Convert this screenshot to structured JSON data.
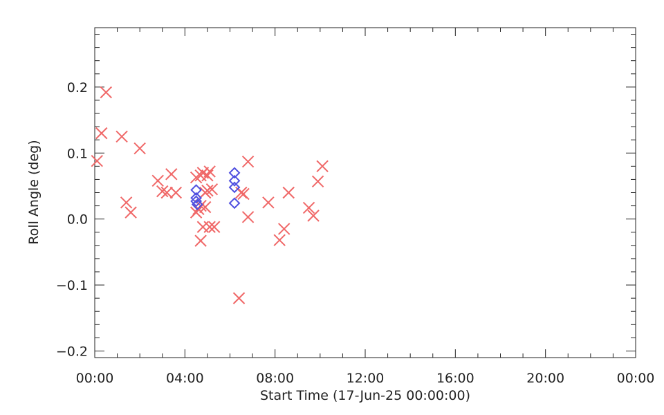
{
  "chart_data": {
    "type": "scatter",
    "title": "",
    "xlabel": "Start Time (17-Jun-25 00:00:00)",
    "ylabel": "Roll Angle (deg)",
    "x_unit": "hours",
    "xlim": [
      0,
      24
    ],
    "ylim": [
      -0.21,
      0.29
    ],
    "x_ticks": [
      {
        "value": 0,
        "label": "00:00"
      },
      {
        "value": 4,
        "label": "04:00"
      },
      {
        "value": 8,
        "label": "08:00"
      },
      {
        "value": 12,
        "label": "12:00"
      },
      {
        "value": 16,
        "label": "16:00"
      },
      {
        "value": 20,
        "label": "20:00"
      },
      {
        "value": 24,
        "label": "00:00"
      }
    ],
    "y_ticks": [
      {
        "value": -0.2,
        "label": "−0.2"
      },
      {
        "value": -0.1,
        "label": "−0.1"
      },
      {
        "value": 0.0,
        "label": "0.0"
      },
      {
        "value": 0.1,
        "label": "0.1"
      },
      {
        "value": 0.2,
        "label": "0.2"
      }
    ],
    "grid": false,
    "series": [
      {
        "marker": "x",
        "color": "#f06868",
        "points": [
          {
            "x": 0.1,
            "y": 0.088
          },
          {
            "x": 0.3,
            "y": 0.13
          },
          {
            "x": 0.5,
            "y": 0.192
          },
          {
            "x": 1.2,
            "y": 0.125
          },
          {
            "x": 1.4,
            "y": 0.025
          },
          {
            "x": 1.6,
            "y": 0.01
          },
          {
            "x": 2.0,
            "y": 0.107
          },
          {
            "x": 2.8,
            "y": 0.058
          },
          {
            "x": 3.0,
            "y": 0.042
          },
          {
            "x": 3.2,
            "y": 0.04
          },
          {
            "x": 3.4,
            "y": 0.068
          },
          {
            "x": 3.6,
            "y": 0.04
          },
          {
            "x": 4.5,
            "y": 0.063
          },
          {
            "x": 4.5,
            "y": 0.01
          },
          {
            "x": 4.6,
            "y": 0.015
          },
          {
            "x": 4.7,
            "y": 0.066
          },
          {
            "x": 4.7,
            "y": 0.02
          },
          {
            "x": 4.7,
            "y": -0.033
          },
          {
            "x": 4.8,
            "y": 0.07
          },
          {
            "x": 4.8,
            "y": -0.012
          },
          {
            "x": 4.9,
            "y": 0.04
          },
          {
            "x": 4.9,
            "y": 0.018
          },
          {
            "x": 5.0,
            "y": 0.066
          },
          {
            "x": 5.0,
            "y": 0.043
          },
          {
            "x": 5.1,
            "y": 0.072
          },
          {
            "x": 5.1,
            "y": -0.012
          },
          {
            "x": 5.2,
            "y": 0.045
          },
          {
            "x": 5.3,
            "y": -0.012
          },
          {
            "x": 6.4,
            "y": -0.12
          },
          {
            "x": 6.5,
            "y": 0.04
          },
          {
            "x": 6.6,
            "y": 0.038
          },
          {
            "x": 6.8,
            "y": 0.087
          },
          {
            "x": 6.8,
            "y": 0.003
          },
          {
            "x": 7.7,
            "y": 0.025
          },
          {
            "x": 8.2,
            "y": -0.032
          },
          {
            "x": 8.4,
            "y": -0.015
          },
          {
            "x": 8.6,
            "y": 0.04
          },
          {
            "x": 9.5,
            "y": 0.017
          },
          {
            "x": 9.7,
            "y": 0.005
          },
          {
            "x": 9.9,
            "y": 0.057
          },
          {
            "x": 10.1,
            "y": 0.08
          }
        ]
      },
      {
        "marker": "diamond",
        "color": "#5050e0",
        "points": [
          {
            "x": 4.5,
            "y": 0.044
          },
          {
            "x": 4.5,
            "y": 0.032
          },
          {
            "x": 4.5,
            "y": 0.027
          },
          {
            "x": 4.55,
            "y": 0.022
          },
          {
            "x": 6.2,
            "y": 0.07
          },
          {
            "x": 6.2,
            "y": 0.058
          },
          {
            "x": 6.2,
            "y": 0.048
          },
          {
            "x": 6.2,
            "y": 0.024
          }
        ]
      }
    ]
  }
}
